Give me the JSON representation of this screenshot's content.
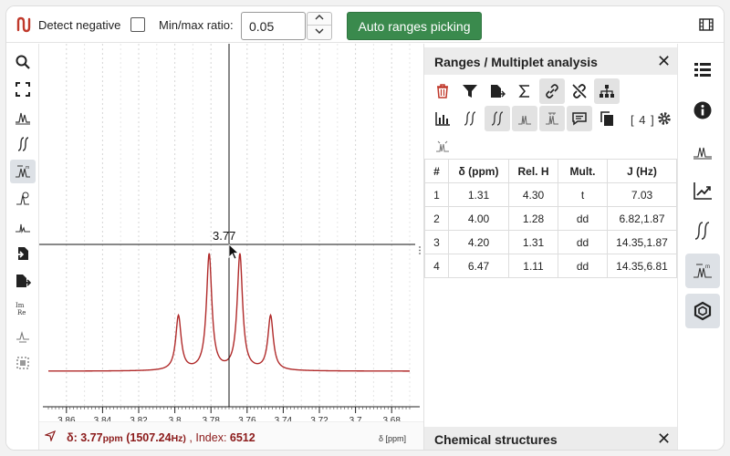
{
  "toolbar": {
    "detect_negative_label": "Detect negative",
    "detect_negative_checked": false,
    "ratio_label": "Min/max ratio:",
    "ratio_value": "0.05",
    "auto_ranges_label": "Auto ranges picking"
  },
  "left_tools": [
    {
      "icon": "zoom-icon",
      "active": false
    },
    {
      "icon": "fit-icon",
      "active": false
    },
    {
      "icon": "peak-picking-icon",
      "active": false
    },
    {
      "icon": "integral-icon",
      "active": false
    },
    {
      "icon": "ranges-picking-icon",
      "active": true
    },
    {
      "icon": "phase-correction-icon",
      "active": false
    },
    {
      "icon": "baseline-correction-icon",
      "active": false
    },
    {
      "icon": "import-icon",
      "active": false
    },
    {
      "icon": "export-icon",
      "active": false
    },
    {
      "icon": "real-imaginary-icon",
      "active": false
    },
    {
      "icon": "multiplet-icon",
      "active": false
    },
    {
      "icon": "select-region-icon",
      "active": false
    }
  ],
  "chart": {
    "crosshair_label": "3.77",
    "x_ticks": [
      "3.86",
      "3.84",
      "3.82",
      "3.8",
      "3.78",
      "3.76",
      "3.74",
      "3.72",
      "3.7",
      "3.68"
    ],
    "axis_label": "δ [ppm]",
    "line_color": "#b02a2a"
  },
  "chart_data": {
    "type": "line",
    "xlabel": "δ [ppm]",
    "xlim": [
      3.87,
      3.67
    ],
    "x_reversed": true,
    "peaks": [
      {
        "x": 3.798,
        "height": 0.47
      },
      {
        "x": 3.781,
        "height": 1.0
      },
      {
        "x": 3.764,
        "height": 1.0
      },
      {
        "x": 3.747,
        "height": 0.47
      }
    ],
    "crosshair_x": 3.77
  },
  "status": {
    "delta_label": "δ:",
    "delta_value": "3.77",
    "delta_unit": "ppm",
    "hz_value": "(1507.24",
    "hz_unit": "Hz)",
    "index_label": ", Index:",
    "index_value": "6512",
    "axis_label": "δ [ppm]"
  },
  "panel": {
    "title": "Ranges / Multiplet analysis",
    "count_label": "[ 4 ]",
    "columns": [
      "#",
      "δ (ppm)",
      "Rel. H",
      "Mult.",
      "J (Hz)"
    ],
    "rows": [
      [
        "1",
        "1.31",
        "4.30",
        "t",
        "7.03"
      ],
      [
        "2",
        "4.00",
        "1.28",
        "dd",
        "6.82,1.87"
      ],
      [
        "3",
        "4.20",
        "1.31",
        "dd",
        "14.35,1.87"
      ],
      [
        "4",
        "6.47",
        "1.11",
        "dd",
        "14.35,6.81"
      ]
    ],
    "chem_title": "Chemical structures"
  },
  "right_icons": [
    {
      "icon": "spectra-list-icon",
      "active": false
    },
    {
      "icon": "info-icon",
      "active": false
    },
    {
      "icon": "peaks-icon",
      "active": false
    },
    {
      "icon": "trend-icon",
      "active": false
    },
    {
      "icon": "integrals-icon",
      "active": false
    },
    {
      "icon": "ranges-icon",
      "active": true
    },
    {
      "icon": "structure-icon",
      "active": true
    }
  ]
}
